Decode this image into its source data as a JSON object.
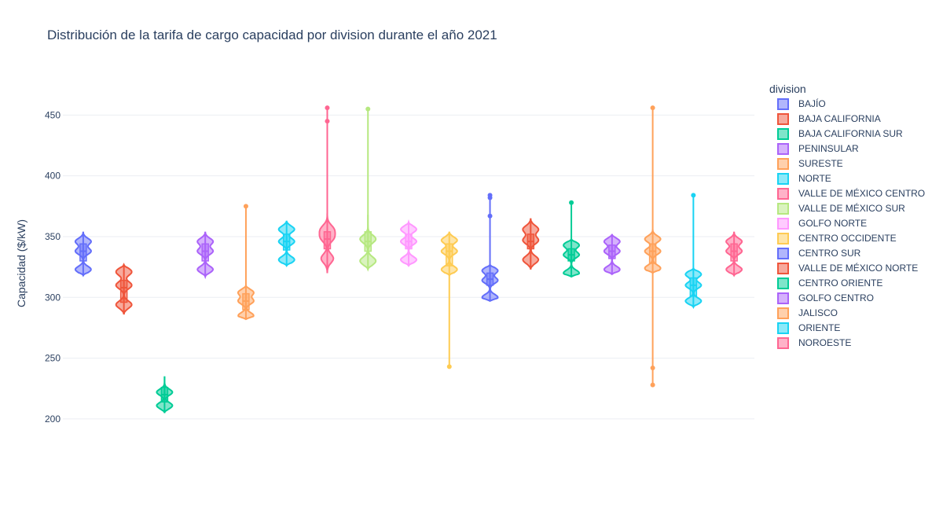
{
  "chart_data": {
    "type": "violin",
    "title": "Distribución de la tarifa de cargo capacidad por division durante el año 2021",
    "ylabel": "Capacidad ($/kW)",
    "xlabel": "",
    "ylim": [
      176,
      480
    ],
    "yticks": [
      200,
      250,
      300,
      350,
      400,
      450
    ],
    "grid": true,
    "legend_title": "division",
    "legend_position": "right",
    "series": [
      {
        "name": "BAJÍO",
        "color": "#636efa",
        "min": 318,
        "max": 354,
        "q1": 330,
        "median": 338,
        "q3": 344,
        "modes": [
          323,
          338,
          346
        ],
        "outliers": []
      },
      {
        "name": "BAJA CALIFORNIA",
        "color": "#ef553b",
        "min": 286,
        "max": 327,
        "q1": 296,
        "median": 308,
        "q3": 314,
        "modes": [
          294,
          310,
          321
        ],
        "outliers": []
      },
      {
        "name": "BAJA CALIFORNIA SUR",
        "color": "#00cc96",
        "min": 205,
        "max": 235,
        "q1": 214,
        "median": 220,
        "q3": 226,
        "modes": [
          211,
          222
        ],
        "outliers": []
      },
      {
        "name": "PENINSULAR",
        "color": "#ab63fa",
        "min": 317,
        "max": 354,
        "q1": 330,
        "median": 338,
        "q3": 344,
        "modes": [
          323,
          338,
          346
        ],
        "outliers": []
      },
      {
        "name": "SURESTE",
        "color": "#ffa15a",
        "min": 282,
        "max": 310,
        "q1": 290,
        "median": 297,
        "q3": 303,
        "modes": [
          285,
          297,
          304
        ],
        "outliers": [
          375
        ]
      },
      {
        "name": "NORTE",
        "color": "#19d3f3",
        "min": 326,
        "max": 363,
        "q1": 339,
        "median": 346,
        "q3": 352,
        "modes": [
          331,
          346,
          356
        ],
        "outliers": []
      },
      {
        "name": "VALLE DE MÉXICO CENTRO",
        "color": "#ff6692",
        "min": 320,
        "max": 372,
        "q1": 340,
        "median": 348,
        "q3": 354,
        "modes": [
          332,
          349,
          356
        ],
        "outliers": [
          445,
          456
        ]
      },
      {
        "name": "VALLE DE MÉXICO SUR",
        "color": "#b6e880",
        "min": 323,
        "max": 368,
        "q1": 338,
        "median": 346,
        "q3": 354,
        "modes": [
          330,
          348
        ],
        "outliers": [
          455
        ]
      },
      {
        "name": "GOLFO NORTE",
        "color": "#ff97ff",
        "min": 326,
        "max": 362,
        "q1": 340,
        "median": 346,
        "q3": 352,
        "modes": [
          331,
          346,
          356
        ],
        "outliers": []
      },
      {
        "name": "CENTRO OCCIDENTE",
        "color": "#fecb52",
        "min": 318,
        "max": 354,
        "q1": 326,
        "median": 338,
        "q3": 344,
        "modes": [
          323,
          338,
          347
        ],
        "outliers": [
          243
        ]
      },
      {
        "name": "CENTRO SUR",
        "color": "#636efa",
        "min": 297,
        "max": 327,
        "q1": 310,
        "median": 315,
        "q3": 320,
        "modes": [
          300,
          314,
          322
        ],
        "outliers": [
          367,
          382,
          384
        ]
      },
      {
        "name": "VALLE DE MÉXICO NORTE",
        "color": "#ef553b",
        "min": 323,
        "max": 365,
        "q1": 340,
        "median": 346,
        "q3": 352,
        "modes": [
          331,
          347,
          356
        ],
        "outliers": []
      },
      {
        "name": "CENTRO ORIENTE",
        "color": "#00cc96",
        "min": 317,
        "max": 348,
        "q1": 330,
        "median": 335,
        "q3": 340,
        "modes": [
          320,
          335,
          343
        ],
        "outliers": [
          378
        ]
      },
      {
        "name": "GOLFO CENTRO",
        "color": "#ab63fa",
        "min": 319,
        "max": 352,
        "q1": 332,
        "median": 338,
        "q3": 343,
        "modes": [
          323,
          338,
          346
        ],
        "outliers": []
      },
      {
        "name": "JALISCO",
        "color": "#ffa15a",
        "min": 320,
        "max": 356,
        "q1": 328,
        "median": 338,
        "q3": 344,
        "modes": [
          324,
          338,
          348
        ],
        "outliers": [
          228,
          242,
          456
        ]
      },
      {
        "name": "ORIENTE",
        "color": "#19d3f3",
        "min": 292,
        "max": 324,
        "q1": 301,
        "median": 310,
        "q3": 316,
        "modes": [
          297,
          310,
          319
        ],
        "outliers": [
          384
        ]
      },
      {
        "name": "NOROESTE",
        "color": "#ff6692",
        "min": 318,
        "max": 354,
        "q1": 330,
        "median": 338,
        "q3": 344,
        "modes": [
          323,
          338,
          346
        ],
        "outliers": []
      }
    ]
  }
}
